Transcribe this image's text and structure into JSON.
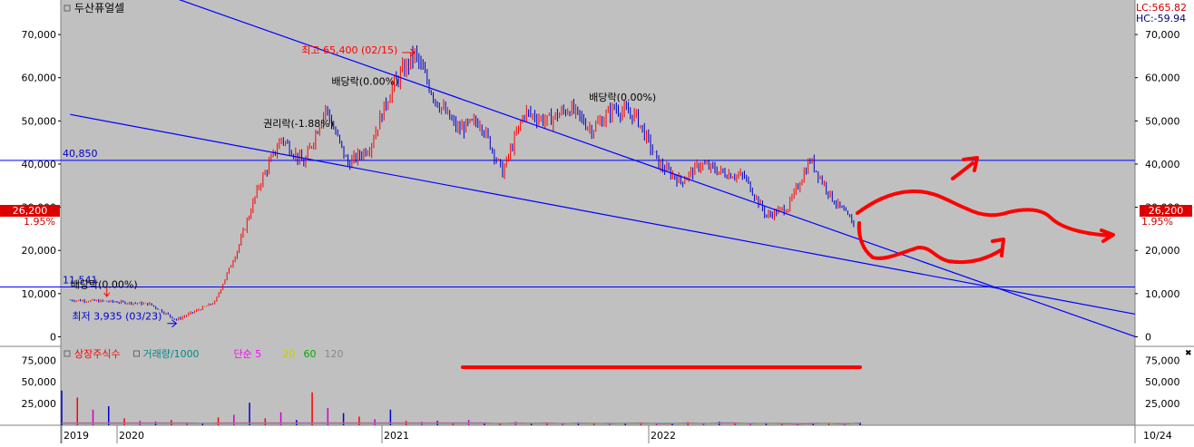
{
  "window": {
    "title": "두산퓨얼셀",
    "lc": "LC:565.82",
    "hc": "HC:-59.94",
    "current_price": "26,200",
    "current_change": "1.95%",
    "close_box_glyph": "✖"
  },
  "colors": {
    "plot_bg": "#c0c0c0",
    "up": "#ff0000",
    "down": "#0000cc",
    "trendline": "#0000ff",
    "hline": "#0000ff",
    "annotation": "#ff0000",
    "volume_label_listed": "#ff0000",
    "volume_label_volume": "#008888",
    "ma5": "#ff00ff",
    "ma20": "#cccc00",
    "ma60": "#00aa00",
    "ma120": "#888888"
  },
  "chart_data": [
    {
      "type": "line",
      "name": "price",
      "ylim": [
        -2000,
        78000
      ],
      "yticks": [
        "70,000",
        "60,000",
        "50,000",
        "40,000",
        "30,000",
        "20,000",
        "10,000",
        "0"
      ],
      "ytick_values": [
        70000,
        60000,
        50000,
        40000,
        30000,
        20000,
        10000,
        0
      ],
      "xticks": [
        "2019",
        "2020",
        "2021",
        "2022"
      ],
      "x_end_label": "10/24",
      "series": [
        {
          "x": [
            "2019-10",
            "2019-12",
            "2020-02",
            "2020-03-23",
            "2020-05",
            "2020-06",
            "2020-07",
            "2020-08",
            "2020-09",
            "2020-10",
            "2020-11",
            "2020-12",
            "2021-01",
            "2021-02-15",
            "2021-03",
            "2021-04",
            "2021-05",
            "2021-06",
            "2021-07",
            "2021-08",
            "2021-09",
            "2021-10",
            "2021-11",
            "2021-12",
            "2022-01",
            "2022-02",
            "2022-03",
            "2022-04",
            "2022-05",
            "2022-06",
            "2022-07",
            "2022-08",
            "2022-09",
            "2022-10"
          ],
          "values": [
            8500,
            8200,
            7600,
            3935,
            8000,
            20000,
            35000,
            46000,
            40000,
            53000,
            40000,
            44000,
            58000,
            65400,
            55000,
            48000,
            50000,
            38000,
            52000,
            50000,
            53000,
            48000,
            53000,
            51000,
            40000,
            36000,
            40000,
            38000,
            37000,
            28000,
            30000,
            41000,
            32000,
            26200
          ]
        }
      ],
      "hlines": [
        {
          "value": 40850,
          "label": "40,850"
        },
        {
          "value": 11541,
          "label": "11,541"
        }
      ],
      "trendlines": [
        {
          "from": [
            "2019-10",
            87000
          ],
          "to": [
            "2022-10-24",
            22500
          ]
        },
        {
          "from": [
            "2019-10",
            51500
          ],
          "to": [
            "2022-10-24",
            17200
          ]
        }
      ],
      "annotations": [
        {
          "text": "최고 65,400 (02/15)",
          "x": "2021-02-15",
          "y": 65400,
          "color": "#ff0000"
        },
        {
          "text": "최저 3,935 (03/23)",
          "x": "2020-03-23",
          "y": 3935,
          "color": "#0000cc"
        },
        {
          "text": "배당락(0.00%)",
          "x": "2019-12",
          "y": 8800,
          "color": "#000000"
        },
        {
          "text": "배당락(0.00%)",
          "x": "2020-12",
          "y": 58000,
          "color": "#000000"
        },
        {
          "text": "배당락(0.00%)",
          "x": "2021-12",
          "y": 53000,
          "color": "#000000"
        },
        {
          "text": "권리락(-1.88%)",
          "x": "2020-08",
          "y": 48000,
          "color": "#000000"
        }
      ]
    },
    {
      "type": "bar",
      "name": "volume",
      "ylim": [
        0,
        90000
      ],
      "yticks": [
        "75,000",
        "50,000",
        "25,000"
      ],
      "ytick_values": [
        75000,
        50000,
        25000
      ],
      "legend": [
        {
          "text": "상장주식수",
          "color": "#ff0000"
        },
        {
          "text": "거래량/1000",
          "color": "#008888"
        },
        {
          "text": "단순 5",
          "color": "#ff00ff"
        },
        {
          "text": "20",
          "color": "#cccc00"
        },
        {
          "text": "60",
          "color": "#00aa00"
        },
        {
          "text": "120",
          "color": "#888888"
        }
      ],
      "values": [
        40000,
        32000,
        18000,
        22000,
        8000,
        5000,
        4000,
        6000,
        3000,
        2500,
        9000,
        12000,
        26000,
        8000,
        15000,
        6000,
        38000,
        20000,
        14000,
        10000,
        7000,
        18000,
        5000,
        4000,
        5000,
        3000,
        6000,
        3000,
        2000,
        4000,
        2500,
        3000,
        2000,
        3000,
        2500,
        2000,
        2500,
        3000,
        2000,
        2000,
        3500,
        2000,
        4000,
        3000,
        2000,
        2500,
        2000,
        1500,
        2000,
        2500,
        1500,
        3000
      ]
    }
  ]
}
